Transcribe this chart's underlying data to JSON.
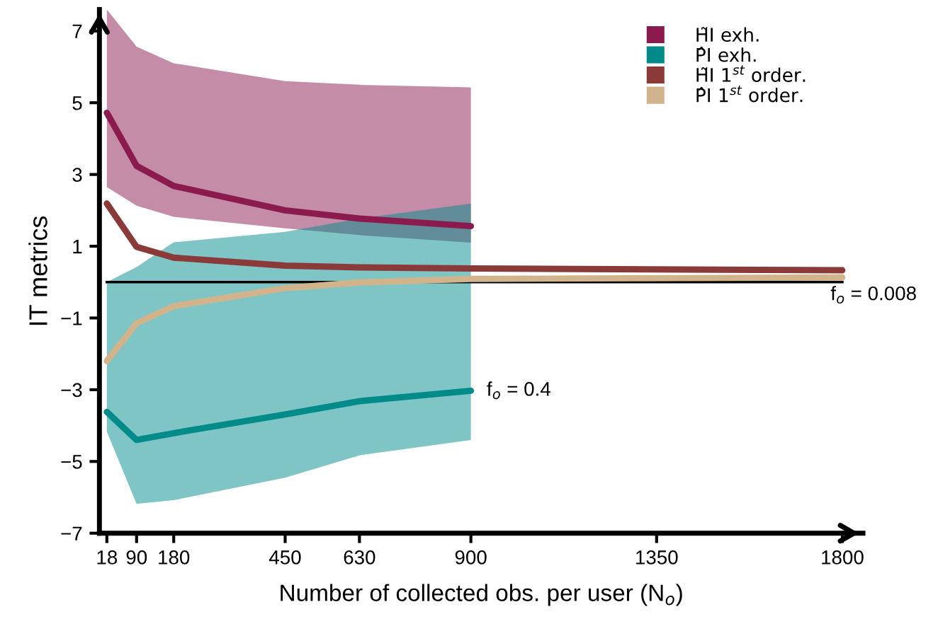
{
  "chart_data": {
    "type": "line",
    "xlabel": "Number of collected obs. per user (N$_{o}$)",
    "ylabel": "IT metrics",
    "xlim": [
      0,
      1850
    ],
    "ylim": [
      -7,
      7.6
    ],
    "xticks": [
      18,
      90,
      180,
      450,
      630,
      900,
      1350,
      1800
    ],
    "yticks": [
      -7,
      -5,
      -3,
      -1,
      1,
      3,
      5,
      7
    ],
    "grid": false,
    "legend": "top right",
    "marker": "none",
    "line_style": "solid",
    "series": [
      {
        "name": "H̃I exh.",
        "color": "#8b1a4f",
        "x": [
          18,
          90,
          180,
          450,
          630,
          900
        ],
        "values": [
          4.72,
          3.24,
          2.68,
          2.0,
          1.77,
          1.56
        ],
        "lower": [
          2.65,
          2.13,
          1.82,
          1.5,
          1.31,
          1.1
        ],
        "upper": [
          7.6,
          6.56,
          6.1,
          5.6,
          5.5,
          5.43
        ]
      },
      {
        "name": "P̂I exh.",
        "color": "#008b8b",
        "x": [
          18,
          90,
          180,
          450,
          630,
          900
        ],
        "values": [
          -3.62,
          -4.4,
          -4.21,
          -3.69,
          -3.32,
          -3.03
        ],
        "lower": [
          -4.17,
          -6.18,
          -6.08,
          -5.45,
          -4.83,
          -4.4
        ],
        "upper": [
          0,
          0.42,
          1.11,
          1.4,
          1.77,
          2.19
        ]
      },
      {
        "name": "H̃I 1$^{st}$ order.",
        "color": "#8b3a3a",
        "x": [
          18,
          90,
          180,
          450,
          630,
          900,
          1800
        ],
        "values": [
          2.19,
          0.98,
          0.68,
          0.46,
          0.41,
          0.38,
          0.33
        ]
      },
      {
        "name": "P̂I 1$^{st}$ order.",
        "color": "#d2b48c",
        "x": [
          18,
          90,
          180,
          450,
          630,
          900,
          1800
        ],
        "values": [
          -2.2,
          -1.15,
          -0.67,
          -0.17,
          -0.01,
          0.09,
          0.13
        ]
      }
    ],
    "ref_lines": [
      {
        "axis": "y",
        "value": 0,
        "color": "#000000"
      }
    ],
    "annotations": [
      {
        "text": "f$_{o}$ = 0.4",
        "x": 900,
        "y": -3.03
      },
      {
        "text": "f$_{o}$ = 0.008",
        "x": 1800,
        "y": 0
      }
    ]
  }
}
